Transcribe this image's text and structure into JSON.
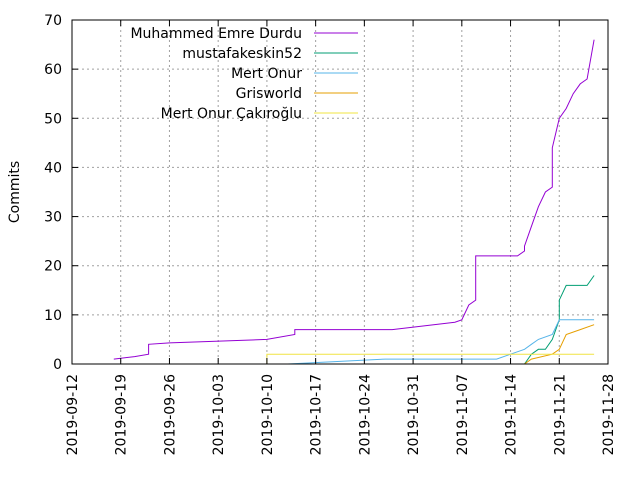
{
  "chart_data": {
    "type": "line",
    "title": "",
    "xlabel": "",
    "ylabel": "Commits",
    "x_type": "date",
    "xlim": [
      "2019-09-12",
      "2019-11-28"
    ],
    "ylim": [
      0,
      70
    ],
    "x_ticks": [
      "2019-09-12",
      "2019-09-19",
      "2019-09-26",
      "2019-10-03",
      "2019-10-10",
      "2019-10-17",
      "2019-10-24",
      "2019-10-31",
      "2019-11-07",
      "2019-11-14",
      "2019-11-21",
      "2019-11-28"
    ],
    "y_ticks": [
      0,
      10,
      20,
      30,
      40,
      50,
      60,
      70
    ],
    "grid": true,
    "legend_position": "top-center",
    "series": [
      {
        "name": "Muhammed Emre Durdu",
        "color": "#9400d3",
        "x": [
          "2019-09-18",
          "2019-09-21",
          "2019-09-23",
          "2019-09-23",
          "2019-09-26",
          "2019-10-10",
          "2019-10-14",
          "2019-10-14",
          "2019-10-28",
          "2019-11-06",
          "2019-11-07",
          "2019-11-08",
          "2019-11-09",
          "2019-11-09",
          "2019-11-15",
          "2019-11-16",
          "2019-11-16",
          "2019-11-17",
          "2019-11-18",
          "2019-11-19",
          "2019-11-20",
          "2019-11-20",
          "2019-11-21",
          "2019-11-22",
          "2019-11-23",
          "2019-11-24",
          "2019-11-25",
          "2019-11-26"
        ],
        "y": [
          1,
          1.5,
          2,
          4,
          4.3,
          5,
          6,
          7,
          7,
          8.5,
          9,
          12,
          13,
          22,
          22,
          23,
          24,
          28,
          32,
          35,
          36,
          44,
          50,
          52,
          55,
          57,
          58,
          66
        ]
      },
      {
        "name": "mustafakeskin52",
        "color": "#009e73",
        "x": [
          "2019-11-11",
          "2019-11-16",
          "2019-11-17",
          "2019-11-18",
          "2019-11-19",
          "2019-11-20",
          "2019-11-21",
          "2019-11-21",
          "2019-11-22",
          "2019-11-25",
          "2019-11-26"
        ],
        "y": [
          0,
          0,
          2,
          3,
          3,
          5,
          9,
          13,
          16,
          16,
          18
        ]
      },
      {
        "name": "Mert Onur",
        "color": "#56b4e9",
        "x": [
          "2019-10-13",
          "2019-10-27",
          "2019-11-12",
          "2019-11-14",
          "2019-11-16",
          "2019-11-17",
          "2019-11-18",
          "2019-11-20",
          "2019-11-21",
          "2019-11-26"
        ],
        "y": [
          0,
          1,
          1,
          2,
          3,
          4,
          5,
          6,
          9,
          9
        ]
      },
      {
        "name": "Grisworld",
        "color": "#e69f00",
        "x": [
          "2019-11-16",
          "2019-11-17",
          "2019-11-20",
          "2019-11-21",
          "2019-11-22",
          "2019-11-24",
          "2019-11-26"
        ],
        "y": [
          0,
          1,
          2,
          3,
          6,
          7,
          8
        ]
      },
      {
        "name": "Mert Onur Çakıroğlu",
        "color": "#f0e442",
        "x": [
          "2019-10-10",
          "2019-10-10",
          "2019-11-26"
        ],
        "y": [
          0,
          2,
          2
        ]
      }
    ]
  }
}
